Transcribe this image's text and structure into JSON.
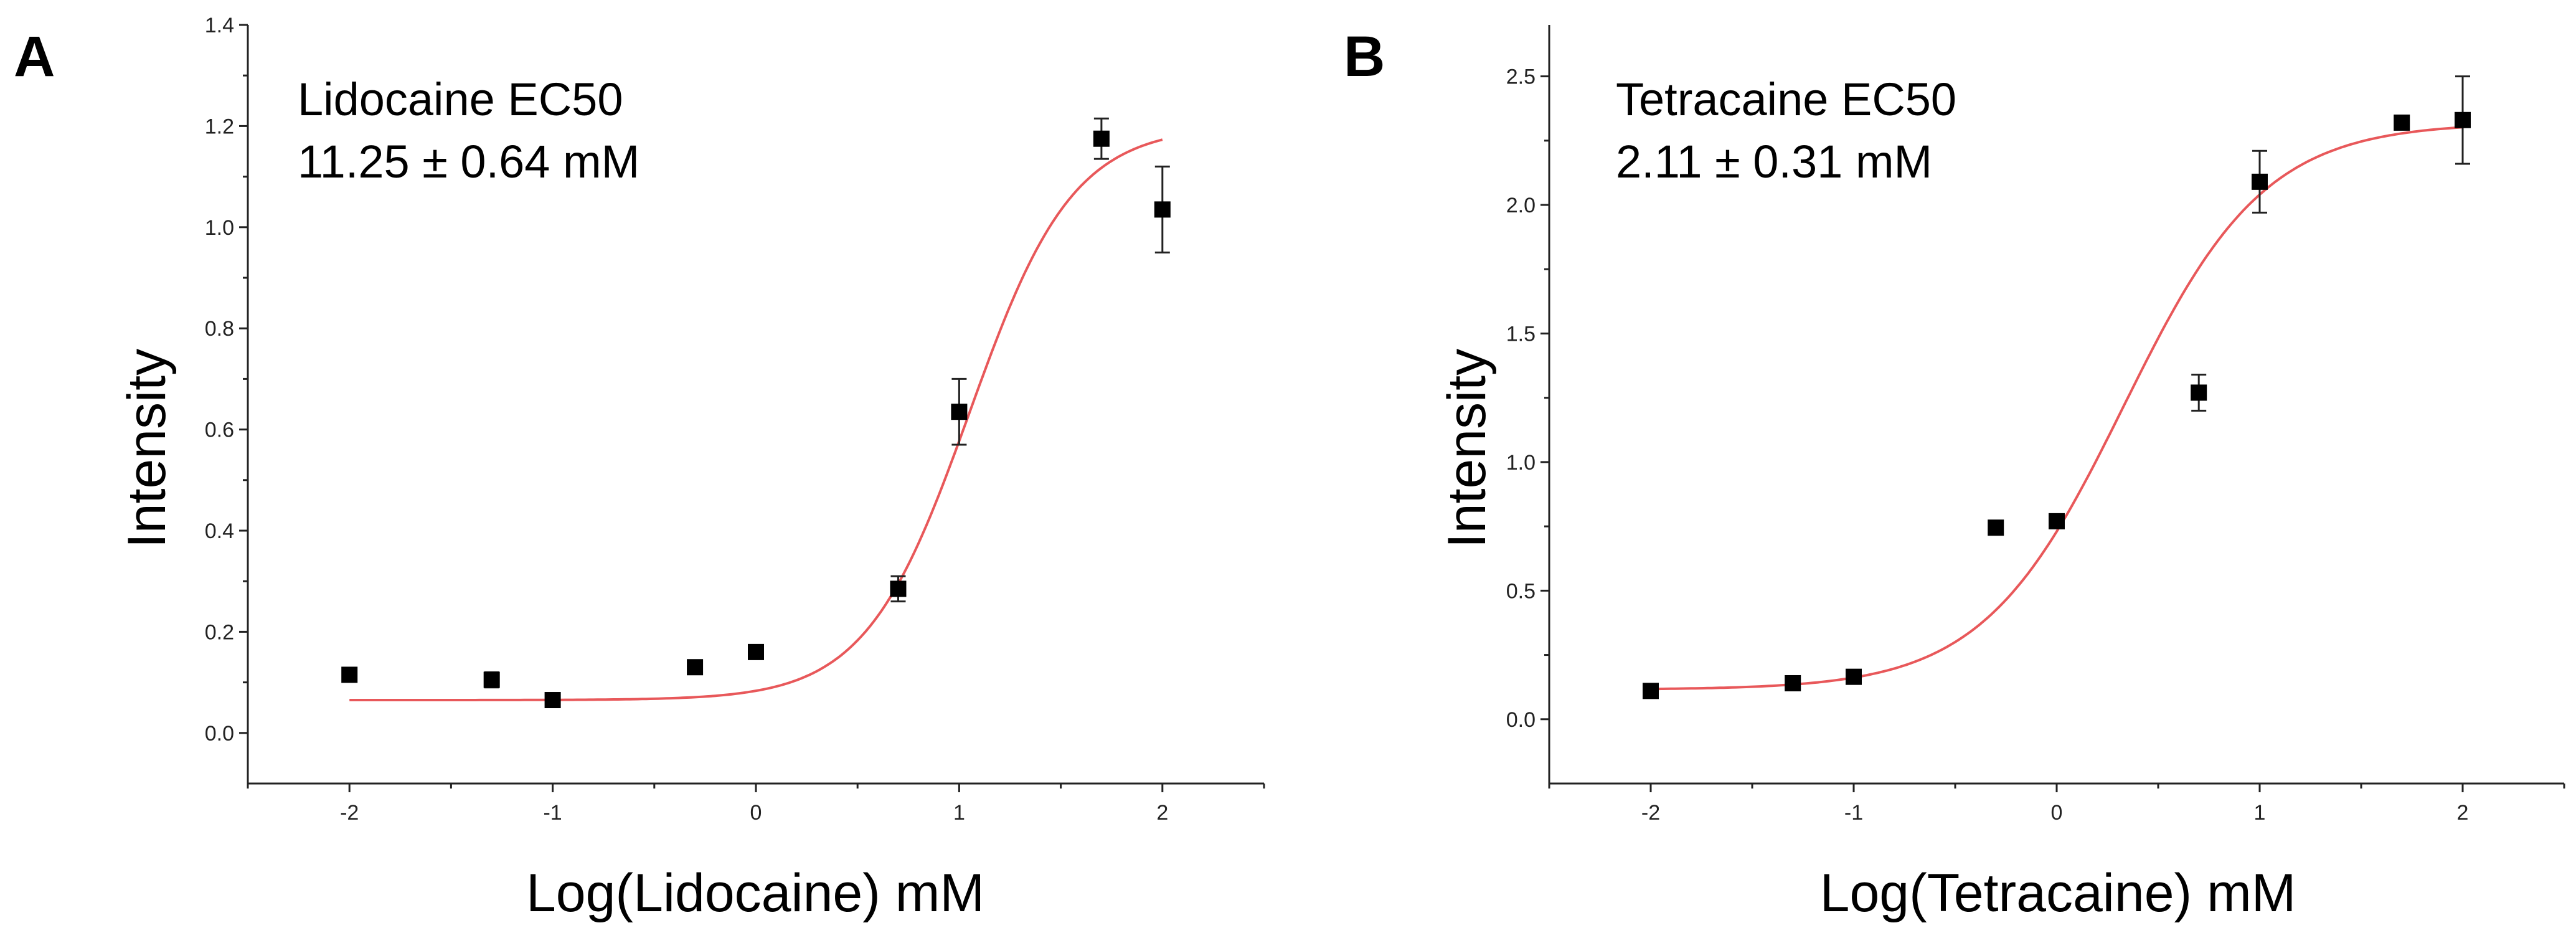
{
  "chart_data": [
    {
      "type": "scatter",
      "panel_label": "A",
      "annotation_line1": "Lidocaine EC50",
      "annotation_line2": "11.25 ± 0.64 mM",
      "xlabel": "Log(Lidocaine) mM",
      "ylabel": "Intensity",
      "xlim": [
        -2.5,
        2.5
      ],
      "ylim": [
        -0.1,
        1.4
      ],
      "xticks": [
        -2,
        -1,
        0,
        1,
        2
      ],
      "xtick_labels": [
        "-2",
        "-1",
        "0",
        "1",
        "2"
      ],
      "yticks": [
        0.0,
        0.2,
        0.4,
        0.6,
        0.8,
        1.0,
        1.2,
        1.4
      ],
      "ytick_labels": [
        "0.0",
        "0.2",
        "0.4",
        "0.6",
        "0.8",
        "1.0",
        "1.2",
        "1.4"
      ],
      "series": [
        {
          "name": "Lidocaine",
          "x": [
            -2,
            -1.3,
            -1,
            -0.3,
            0,
            0.7,
            1,
            1.7,
            2
          ],
          "y": [
            0.115,
            0.105,
            0.065,
            0.13,
            0.16,
            0.285,
            0.635,
            1.175,
            1.035
          ],
          "err": [
            0.01,
            0.015,
            0.01,
            0.01,
            0.01,
            0.025,
            0.065,
            0.04,
            0.085
          ]
        }
      ],
      "fit": {
        "name": "Hill fit",
        "bottom": 0.065,
        "top": 1.2,
        "logEC50": 1.05,
        "hill": 1.7,
        "x_range": [
          -2,
          2
        ]
      },
      "colors": {
        "fit": "#e8585a",
        "points": "#000000"
      }
    },
    {
      "type": "scatter",
      "panel_label": "B",
      "annotation_line1": "Tetracaine EC50",
      "annotation_line2": "2.11 ± 0.31 mM",
      "xlabel": "Log(Tetracaine) mM",
      "ylabel": "Intensity",
      "xlim": [
        -2.5,
        2.5
      ],
      "ylim": [
        -0.25,
        2.7
      ],
      "xticks": [
        -2,
        -1,
        0,
        1,
        2
      ],
      "xtick_labels": [
        "-2",
        "-1",
        "0",
        "1",
        "2"
      ],
      "yticks": [
        0.0,
        0.5,
        1.0,
        1.5,
        2.0,
        2.5
      ],
      "ytick_labels": [
        "0.0",
        "0.5",
        "1.0",
        "1.5",
        "2.0",
        "2.5"
      ],
      "series": [
        {
          "name": "Tetracaine",
          "x": [
            -2,
            -1.3,
            -1,
            -0.3,
            0,
            0.7,
            1,
            1.7,
            2
          ],
          "y": [
            0.11,
            0.14,
            0.165,
            0.745,
            0.77,
            1.27,
            2.09,
            2.32,
            2.33
          ],
          "err": [
            0.01,
            0.01,
            0.01,
            0.02,
            0.01,
            0.07,
            0.12,
            0.02,
            0.17
          ]
        }
      ],
      "fit": {
        "name": "Hill fit",
        "bottom": 0.115,
        "top": 2.32,
        "logEC50": 0.33,
        "hill": 1.25,
        "x_range": [
          -2,
          2
        ]
      },
      "colors": {
        "fit": "#e8585a",
        "points": "#000000"
      }
    }
  ]
}
